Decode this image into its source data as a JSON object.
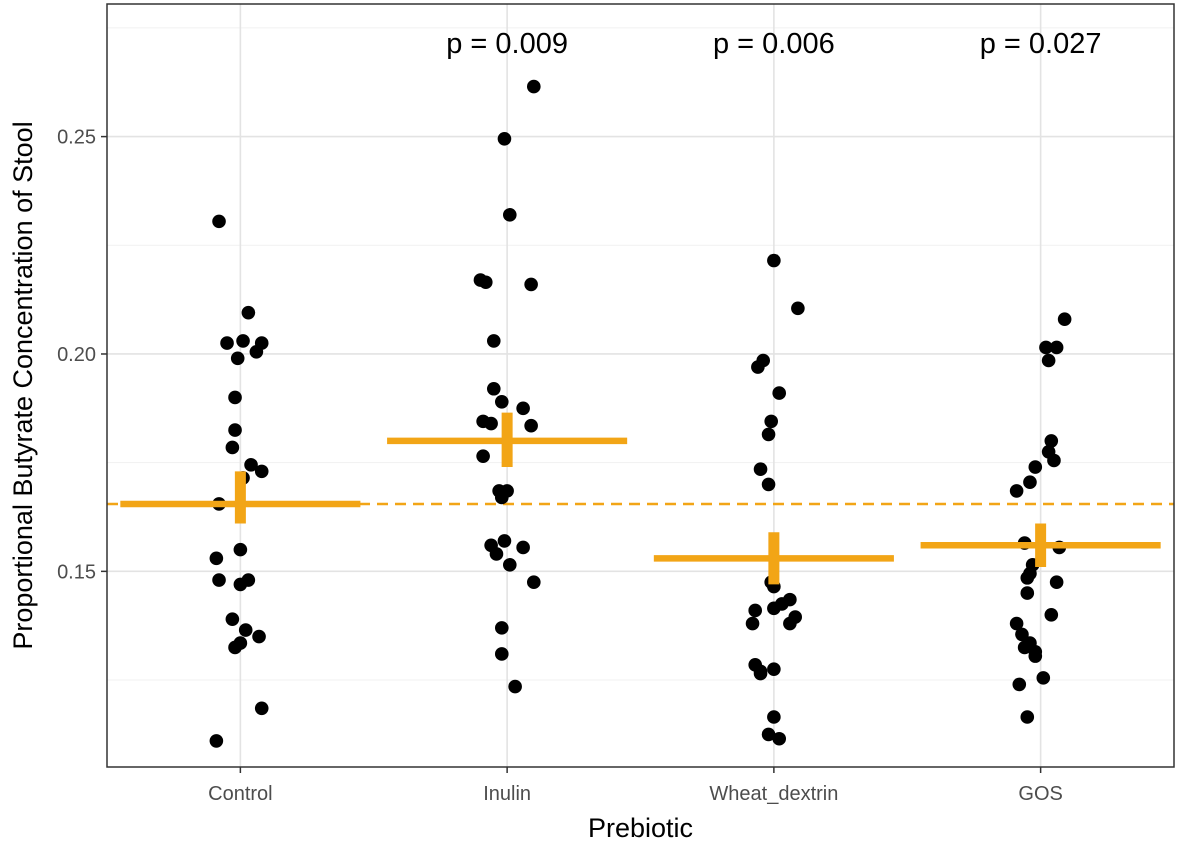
{
  "chart_data": {
    "type": "scatter",
    "title": "",
    "xlabel": "Prebiotic",
    "ylabel": "Proportional Butyrate Concentration of Stool",
    "categories": [
      "Control",
      "Inulin",
      "Wheat_dextrin",
      "GOS"
    ],
    "ylim": [
      0.105,
      0.2805
    ],
    "yticks": [
      "0.15",
      "0.20",
      "0.25"
    ],
    "ytick_values": [
      0.15,
      0.2,
      0.25
    ],
    "grid": true,
    "reference_line": {
      "y": 0.1655,
      "style": "dashed",
      "color": "#f2a516"
    },
    "annotations": [
      {
        "category": "Inulin",
        "text": "p = 0.009"
      },
      {
        "category": "Wheat_dextrin",
        "text": "p = 0.006"
      },
      {
        "category": "GOS",
        "text": "p = 0.027"
      }
    ],
    "summary": [
      {
        "category": "Control",
        "mean": 0.1655,
        "lower": 0.161,
        "upper": 0.173
      },
      {
        "category": "Inulin",
        "mean": 0.18,
        "lower": 0.174,
        "upper": 0.1865
      },
      {
        "category": "Wheat_dextrin",
        "mean": 0.153,
        "lower": 0.147,
        "upper": 0.159
      },
      {
        "category": "GOS",
        "mean": 0.156,
        "lower": 0.151,
        "upper": 0.161
      }
    ],
    "points": [
      {
        "category": "Control",
        "jitter": -0.08,
        "y": 0.2305
      },
      {
        "category": "Control",
        "jitter": 0.03,
        "y": 0.2095
      },
      {
        "category": "Control",
        "jitter": -0.05,
        "y": 0.2025
      },
      {
        "category": "Control",
        "jitter": 0.01,
        "y": 0.203
      },
      {
        "category": "Control",
        "jitter": 0.08,
        "y": 0.2025
      },
      {
        "category": "Control",
        "jitter": -0.01,
        "y": 0.199
      },
      {
        "category": "Control",
        "jitter": 0.06,
        "y": 0.2005
      },
      {
        "category": "Control",
        "jitter": -0.02,
        "y": 0.19
      },
      {
        "category": "Control",
        "jitter": -0.02,
        "y": 0.1825
      },
      {
        "category": "Control",
        "jitter": -0.03,
        "y": 0.1785
      },
      {
        "category": "Control",
        "jitter": 0.04,
        "y": 0.1745
      },
      {
        "category": "Control",
        "jitter": 0.08,
        "y": 0.173
      },
      {
        "category": "Control",
        "jitter": 0.01,
        "y": 0.1715
      },
      {
        "category": "Control",
        "jitter": -0.08,
        "y": 0.1655
      },
      {
        "category": "Control",
        "jitter": 0.0,
        "y": 0.155
      },
      {
        "category": "Control",
        "jitter": -0.09,
        "y": 0.153
      },
      {
        "category": "Control",
        "jitter": -0.08,
        "y": 0.148
      },
      {
        "category": "Control",
        "jitter": 0.03,
        "y": 0.148
      },
      {
        "category": "Control",
        "jitter": 0.0,
        "y": 0.147
      },
      {
        "category": "Control",
        "jitter": -0.03,
        "y": 0.139
      },
      {
        "category": "Control",
        "jitter": 0.02,
        "y": 0.1365
      },
      {
        "category": "Control",
        "jitter": 0.07,
        "y": 0.135
      },
      {
        "category": "Control",
        "jitter": 0.0,
        "y": 0.1335
      },
      {
        "category": "Control",
        "jitter": -0.02,
        "y": 0.1325
      },
      {
        "category": "Control",
        "jitter": 0.08,
        "y": 0.1185
      },
      {
        "category": "Control",
        "jitter": -0.09,
        "y": 0.111
      },
      {
        "category": "Inulin",
        "jitter": 0.1,
        "y": 0.2615
      },
      {
        "category": "Inulin",
        "jitter": -0.01,
        "y": 0.2495
      },
      {
        "category": "Inulin",
        "jitter": 0.01,
        "y": 0.232
      },
      {
        "category": "Inulin",
        "jitter": -0.1,
        "y": 0.217
      },
      {
        "category": "Inulin",
        "jitter": -0.08,
        "y": 0.2165
      },
      {
        "category": "Inulin",
        "jitter": 0.09,
        "y": 0.216
      },
      {
        "category": "Inulin",
        "jitter": -0.05,
        "y": 0.203
      },
      {
        "category": "Inulin",
        "jitter": -0.05,
        "y": 0.192
      },
      {
        "category": "Inulin",
        "jitter": -0.02,
        "y": 0.189
      },
      {
        "category": "Inulin",
        "jitter": 0.06,
        "y": 0.1875
      },
      {
        "category": "Inulin",
        "jitter": -0.09,
        "y": 0.1845
      },
      {
        "category": "Inulin",
        "jitter": -0.06,
        "y": 0.184
      },
      {
        "category": "Inulin",
        "jitter": 0.09,
        "y": 0.1835
      },
      {
        "category": "Inulin",
        "jitter": -0.09,
        "y": 0.1765
      },
      {
        "category": "Inulin",
        "jitter": -0.03,
        "y": 0.1685
      },
      {
        "category": "Inulin",
        "jitter": 0.0,
        "y": 0.1685
      },
      {
        "category": "Inulin",
        "jitter": -0.02,
        "y": 0.167
      },
      {
        "category": "Inulin",
        "jitter": -0.01,
        "y": 0.157
      },
      {
        "category": "Inulin",
        "jitter": -0.06,
        "y": 0.156
      },
      {
        "category": "Inulin",
        "jitter": 0.06,
        "y": 0.1555
      },
      {
        "category": "Inulin",
        "jitter": -0.04,
        "y": 0.154
      },
      {
        "category": "Inulin",
        "jitter": 0.01,
        "y": 0.1515
      },
      {
        "category": "Inulin",
        "jitter": 0.1,
        "y": 0.1475
      },
      {
        "category": "Inulin",
        "jitter": -0.02,
        "y": 0.137
      },
      {
        "category": "Inulin",
        "jitter": -0.02,
        "y": 0.131
      },
      {
        "category": "Inulin",
        "jitter": 0.03,
        "y": 0.1235
      },
      {
        "category": "Wheat_dextrin",
        "jitter": 0.0,
        "y": 0.2215
      },
      {
        "category": "Wheat_dextrin",
        "jitter": 0.09,
        "y": 0.2105
      },
      {
        "category": "Wheat_dextrin",
        "jitter": -0.04,
        "y": 0.1985
      },
      {
        "category": "Wheat_dextrin",
        "jitter": -0.06,
        "y": 0.197
      },
      {
        "category": "Wheat_dextrin",
        "jitter": 0.02,
        "y": 0.191
      },
      {
        "category": "Wheat_dextrin",
        "jitter": -0.01,
        "y": 0.1845
      },
      {
        "category": "Wheat_dextrin",
        "jitter": -0.02,
        "y": 0.1815
      },
      {
        "category": "Wheat_dextrin",
        "jitter": -0.05,
        "y": 0.1735
      },
      {
        "category": "Wheat_dextrin",
        "jitter": -0.02,
        "y": 0.17
      },
      {
        "category": "Wheat_dextrin",
        "jitter": -0.01,
        "y": 0.1475
      },
      {
        "category": "Wheat_dextrin",
        "jitter": 0.0,
        "y": 0.1465
      },
      {
        "category": "Wheat_dextrin",
        "jitter": 0.06,
        "y": 0.1435
      },
      {
        "category": "Wheat_dextrin",
        "jitter": 0.03,
        "y": 0.1425
      },
      {
        "category": "Wheat_dextrin",
        "jitter": 0.0,
        "y": 0.1415
      },
      {
        "category": "Wheat_dextrin",
        "jitter": -0.07,
        "y": 0.141
      },
      {
        "category": "Wheat_dextrin",
        "jitter": 0.08,
        "y": 0.1395
      },
      {
        "category": "Wheat_dextrin",
        "jitter": -0.08,
        "y": 0.138
      },
      {
        "category": "Wheat_dextrin",
        "jitter": 0.06,
        "y": 0.138
      },
      {
        "category": "Wheat_dextrin",
        "jitter": -0.07,
        "y": 0.1285
      },
      {
        "category": "Wheat_dextrin",
        "jitter": -0.05,
        "y": 0.127
      },
      {
        "category": "Wheat_dextrin",
        "jitter": 0.0,
        "y": 0.1275
      },
      {
        "category": "Wheat_dextrin",
        "jitter": -0.05,
        "y": 0.1265
      },
      {
        "category": "Wheat_dextrin",
        "jitter": 0.0,
        "y": 0.1165
      },
      {
        "category": "Wheat_dextrin",
        "jitter": -0.02,
        "y": 0.1125
      },
      {
        "category": "Wheat_dextrin",
        "jitter": 0.02,
        "y": 0.1115
      },
      {
        "category": "GOS",
        "jitter": 0.09,
        "y": 0.208
      },
      {
        "category": "GOS",
        "jitter": 0.02,
        "y": 0.2015
      },
      {
        "category": "GOS",
        "jitter": 0.06,
        "y": 0.2015
      },
      {
        "category": "GOS",
        "jitter": 0.03,
        "y": 0.1985
      },
      {
        "category": "GOS",
        "jitter": 0.04,
        "y": 0.18
      },
      {
        "category": "GOS",
        "jitter": 0.03,
        "y": 0.1775
      },
      {
        "category": "GOS",
        "jitter": 0.05,
        "y": 0.1755
      },
      {
        "category": "GOS",
        "jitter": -0.02,
        "y": 0.174
      },
      {
        "category": "GOS",
        "jitter": -0.04,
        "y": 0.1705
      },
      {
        "category": "GOS",
        "jitter": -0.09,
        "y": 0.1685
      },
      {
        "category": "GOS",
        "jitter": -0.06,
        "y": 0.1565
      },
      {
        "category": "GOS",
        "jitter": 0.07,
        "y": 0.1555
      },
      {
        "category": "GOS",
        "jitter": -0.03,
        "y": 0.1515
      },
      {
        "category": "GOS",
        "jitter": -0.04,
        "y": 0.1495
      },
      {
        "category": "GOS",
        "jitter": -0.05,
        "y": 0.1485
      },
      {
        "category": "GOS",
        "jitter": 0.06,
        "y": 0.1475
      },
      {
        "category": "GOS",
        "jitter": -0.05,
        "y": 0.145
      },
      {
        "category": "GOS",
        "jitter": 0.04,
        "y": 0.14
      },
      {
        "category": "GOS",
        "jitter": -0.09,
        "y": 0.138
      },
      {
        "category": "GOS",
        "jitter": -0.07,
        "y": 0.1355
      },
      {
        "category": "GOS",
        "jitter": -0.04,
        "y": 0.1335
      },
      {
        "category": "GOS",
        "jitter": -0.06,
        "y": 0.1325
      },
      {
        "category": "GOS",
        "jitter": -0.02,
        "y": 0.1305
      },
      {
        "category": "GOS",
        "jitter": -0.02,
        "y": 0.1315
      },
      {
        "category": "GOS",
        "jitter": 0.01,
        "y": 0.1255
      },
      {
        "category": "GOS",
        "jitter": -0.08,
        "y": 0.124
      },
      {
        "category": "GOS",
        "jitter": -0.05,
        "y": 0.1165
      }
    ],
    "colors": {
      "points": "#000000",
      "summary": "#f2a516",
      "grid_major": "#e3e3e3",
      "grid_minor": "#f1f1f1",
      "panel_border": "#333333"
    }
  }
}
